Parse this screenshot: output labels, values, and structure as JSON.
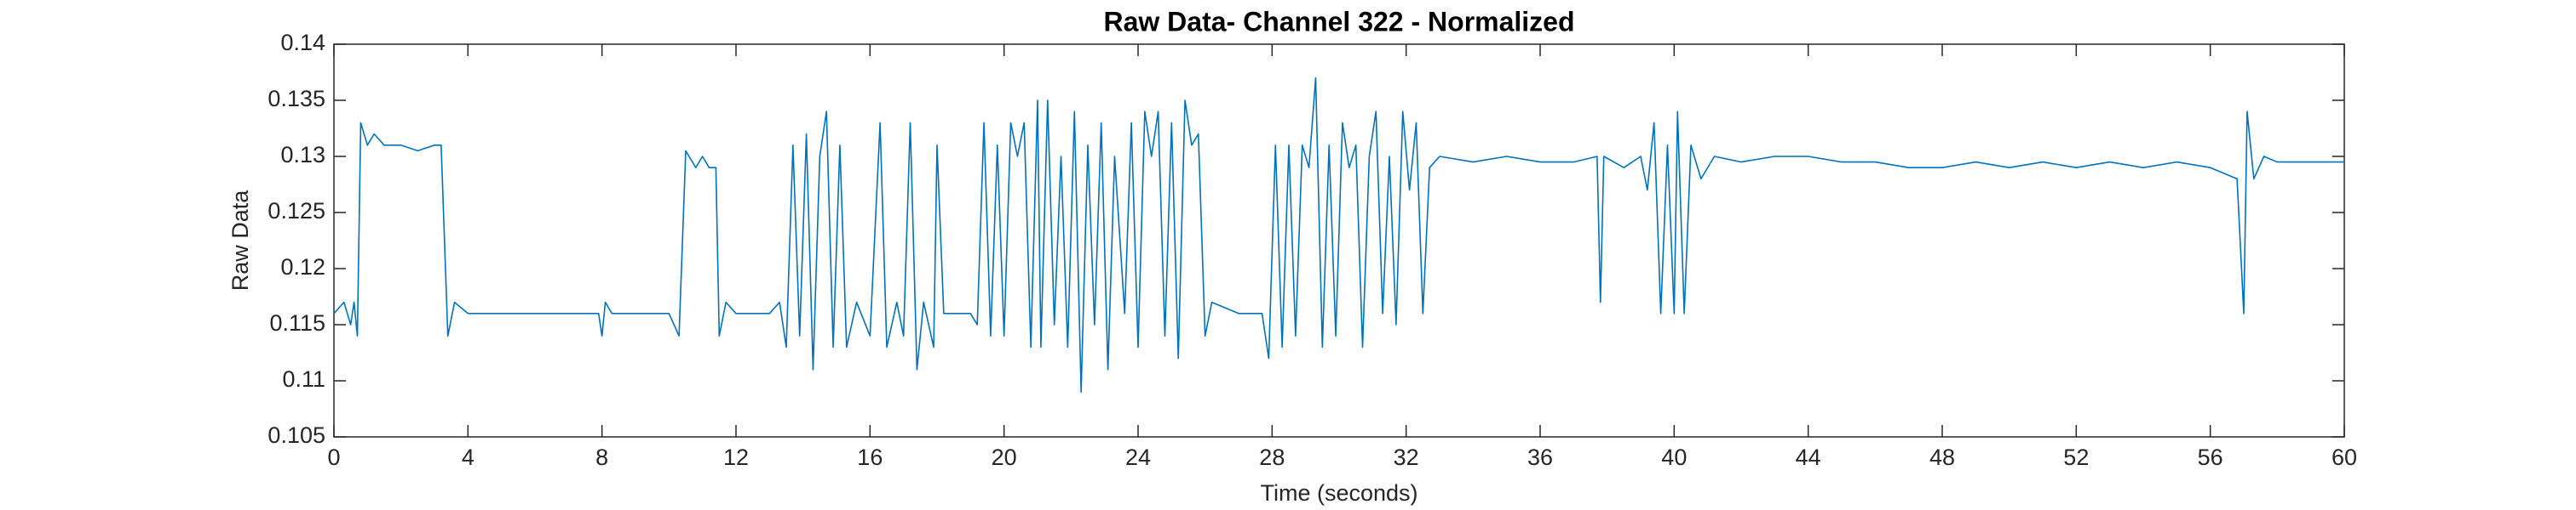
{
  "chart_data": {
    "type": "line",
    "title": "Raw Data- Channel 322 - Normalized",
    "xlabel": "Time (seconds)",
    "ylabel": "Raw Data",
    "color": "#0072bd",
    "xlim": [
      0,
      60
    ],
    "ylim": [
      0.105,
      0.14
    ],
    "xticks": [
      0,
      4,
      8,
      12,
      16,
      20,
      24,
      28,
      32,
      36,
      40,
      44,
      48,
      52,
      56,
      60
    ],
    "yticks": [
      0.105,
      0.11,
      0.115,
      0.12,
      0.125,
      0.13,
      0.135,
      0.14
    ],
    "x": [
      0,
      0.3,
      0.5,
      0.6,
      0.7,
      0.8,
      1.0,
      1.2,
      1.5,
      2.0,
      2.5,
      3.0,
      3.2,
      3.4,
      3.6,
      4,
      6,
      7.9,
      8.0,
      8.1,
      8.3,
      10,
      10.3,
      10.5,
      10.8,
      11.0,
      11.2,
      11.4,
      11.5,
      11.7,
      12,
      13,
      13.3,
      13.5,
      13.7,
      13.9,
      14.1,
      14.3,
      14.5,
      14.7,
      14.9,
      15.1,
      15.3,
      15.6,
      16,
      16.3,
      16.5,
      16.8,
      17,
      17.2,
      17.4,
      17.6,
      17.9,
      18.0,
      18.2,
      19,
      19.2,
      19.4,
      19.6,
      19.8,
      20.0,
      20.2,
      20.4,
      20.6,
      20.8,
      21.0,
      21.1,
      21.3,
      21.5,
      21.7,
      21.9,
      22.1,
      22.3,
      22.5,
      22.7,
      22.9,
      23.1,
      23.3,
      23.6,
      23.8,
      24.0,
      24.2,
      24.4,
      24.6,
      24.8,
      25.0,
      25.2,
      25.4,
      25.6,
      25.8,
      26.0,
      26.2,
      27,
      27.7,
      27.9,
      28.1,
      28.3,
      28.5,
      28.7,
      28.9,
      29.1,
      29.3,
      29.5,
      29.7,
      29.9,
      30.1,
      30.3,
      30.5,
      30.7,
      30.9,
      31.1,
      31.3,
      31.5,
      31.7,
      31.9,
      32.1,
      32.3,
      32.5,
      32.7,
      33,
      34,
      35,
      36,
      37,
      37.7,
      37.8,
      37.9,
      38.5,
      39.0,
      39.2,
      39.4,
      39.6,
      39.8,
      40.0,
      40.1,
      40.3,
      40.5,
      40.8,
      41.2,
      42,
      43,
      44,
      45,
      46,
      47,
      48,
      49,
      50,
      51,
      52,
      53,
      54,
      55,
      56,
      56.8,
      57.0,
      57.1,
      57.3,
      57.6,
      58,
      59,
      60
    ],
    "values": [
      0.116,
      0.117,
      0.115,
      0.117,
      0.114,
      0.133,
      0.131,
      0.132,
      0.131,
      0.131,
      0.1305,
      0.131,
      0.131,
      0.114,
      0.117,
      0.116,
      0.116,
      0.116,
      0.114,
      0.117,
      0.116,
      0.116,
      0.114,
      0.1305,
      0.129,
      0.13,
      0.129,
      0.129,
      0.114,
      0.117,
      0.116,
      0.116,
      0.117,
      0.113,
      0.131,
      0.114,
      0.132,
      0.111,
      0.13,
      0.134,
      0.113,
      0.131,
      0.113,
      0.117,
      0.114,
      0.133,
      0.113,
      0.117,
      0.114,
      0.133,
      0.111,
      0.117,
      0.113,
      0.131,
      0.116,
      0.116,
      0.115,
      0.133,
      0.114,
      0.131,
      0.114,
      0.133,
      0.13,
      0.133,
      0.113,
      0.135,
      0.113,
      0.135,
      0.115,
      0.13,
      0.113,
      0.134,
      0.109,
      0.131,
      0.115,
      0.133,
      0.111,
      0.13,
      0.116,
      0.133,
      0.113,
      0.134,
      0.13,
      0.134,
      0.114,
      0.133,
      0.112,
      0.135,
      0.131,
      0.132,
      0.114,
      0.117,
      0.116,
      0.116,
      0.112,
      0.131,
      0.113,
      0.131,
      0.114,
      0.131,
      0.129,
      0.137,
      0.113,
      0.131,
      0.114,
      0.133,
      0.129,
      0.131,
      0.113,
      0.13,
      0.134,
      0.116,
      0.13,
      0.115,
      0.134,
      0.127,
      0.133,
      0.116,
      0.129,
      0.13,
      0.1295,
      0.13,
      0.1295,
      0.1295,
      0.13,
      0.117,
      0.13,
      0.129,
      0.13,
      0.127,
      0.133,
      0.116,
      0.131,
      0.116,
      0.134,
      0.116,
      0.131,
      0.128,
      0.13,
      0.1295,
      0.13,
      0.13,
      0.1295,
      0.1295,
      0.129,
      0.129,
      0.1295,
      0.129,
      0.1295,
      0.129,
      0.1295,
      0.129,
      0.1295,
      0.129,
      0.128,
      0.116,
      0.134,
      0.128,
      0.13,
      0.1295,
      0.1295,
      0.1295
    ]
  }
}
